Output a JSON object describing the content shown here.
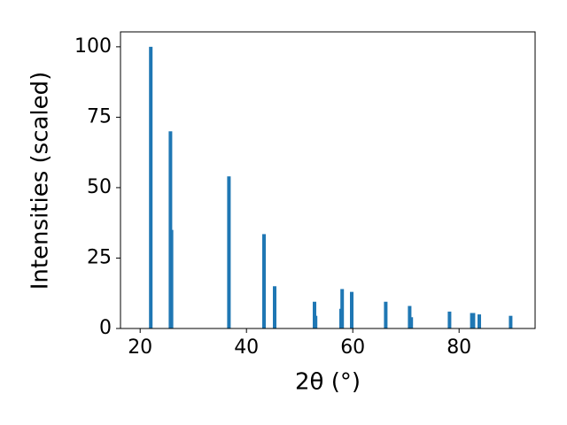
{
  "chart_data": {
    "type": "bar",
    "x_label": "2θ (°)",
    "y_label": "Intensities (scaled)",
    "x": [
      22.0,
      25.7,
      25.9,
      36.7,
      43.3,
      45.3,
      52.8,
      53.0,
      57.8,
      58.0,
      59.8,
      66.2,
      70.7,
      71.0,
      78.2,
      82.4,
      82.7,
      83.8,
      89.7
    ],
    "values": [
      100,
      70,
      35,
      54,
      33.5,
      15,
      9.5,
      4.5,
      7,
      14,
      13,
      9.5,
      8,
      4,
      6,
      5.5,
      5.5,
      5,
      4.5
    ],
    "color": "#1f77b4",
    "xlim": [
      16.3,
      94.3
    ],
    "ylim": [
      0,
      105.3
    ],
    "xticks": [
      20,
      40,
      60,
      80
    ],
    "yticks": [
      0,
      25,
      50,
      75,
      100
    ]
  }
}
